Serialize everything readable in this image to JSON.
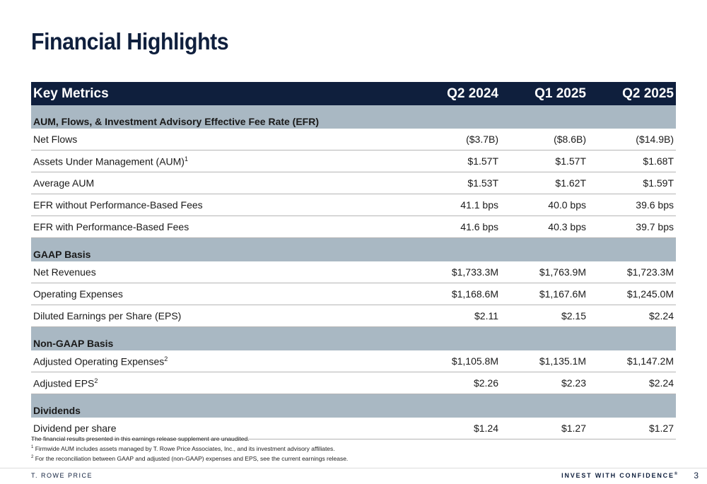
{
  "header": {
    "title": "Financial Highlights"
  },
  "table": {
    "columns": [
      "Key Metrics",
      "Q2 2024",
      "Q1 2025",
      "Q2 2025"
    ],
    "sections": [
      {
        "title": "AUM, Flows, & Investment Advisory Effective Fee Rate (EFR)",
        "rows": [
          {
            "label": "Net Flows",
            "values": [
              "($3.7B)",
              "($8.6B)",
              "($14.9B)"
            ]
          },
          {
            "label": "Assets Under Management (AUM)",
            "sup": "1",
            "values": [
              "$1.57T",
              "$1.57T",
              "$1.68T"
            ]
          },
          {
            "label": "Average AUM",
            "values": [
              "$1.53T",
              "$1.62T",
              "$1.59T"
            ]
          },
          {
            "label": "EFR without Performance-Based Fees",
            "values": [
              "41.1 bps",
              "40.0 bps",
              "39.6 bps"
            ]
          },
          {
            "label": "EFR with Performance-Based Fees",
            "values": [
              "41.6 bps",
              "40.3 bps",
              "39.7 bps"
            ]
          }
        ]
      },
      {
        "title": "GAAP Basis",
        "rows": [
          {
            "label": "Net Revenues",
            "values": [
              "$1,733.3M",
              "$1,763.9M",
              "$1,723.3M"
            ]
          },
          {
            "label": "Operating Expenses",
            "values": [
              "$1,168.6M",
              "$1,167.6M",
              "$1,245.0M"
            ]
          },
          {
            "label": "Diluted Earnings per Share (EPS)",
            "values": [
              "$2.11",
              "$2.15",
              "$2.24"
            ]
          }
        ]
      },
      {
        "title": "Non-GAAP Basis",
        "rows": [
          {
            "label": "Adjusted Operating Expenses",
            "sup": "2",
            "values": [
              "$1,105.8M",
              "$1,135.1M",
              "$1,147.2M"
            ]
          },
          {
            "label": "Adjusted EPS",
            "sup": "2",
            "values": [
              "$2.26",
              "$2.23",
              "$2.24"
            ]
          }
        ]
      },
      {
        "title": "Dividends",
        "rows": [
          {
            "label": "Dividend per share",
            "values": [
              "$1.24",
              "$1.27",
              "$1.27"
            ]
          }
        ]
      }
    ]
  },
  "footnotes": [
    {
      "text": "The financial results presented in this earnings release supplement are unaudited."
    },
    {
      "sup": "1",
      "text": "Firmwide AUM includes assets managed by T. Rowe Price Associates, Inc., and its investment advisory affiliates."
    },
    {
      "sup": "2",
      "text": "For the reconciliation between GAAP and adjusted (non-GAAP) expenses and EPS, see the current earnings release."
    }
  ],
  "footer": {
    "brand": "T. ROWE PRICE",
    "tagline": "INVEST WITH CONFIDENCE",
    "mark": "®",
    "page": "3"
  }
}
